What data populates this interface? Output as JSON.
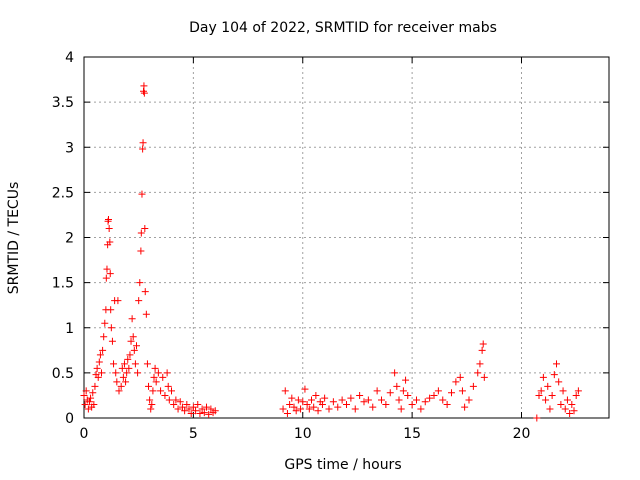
{
  "chart_data": {
    "type": "scatter",
    "title": "Day 104 of 2022, SRMTID for receiver mabs",
    "xlabel": "GPS time / hours",
    "ylabel": "SRMTID / TECUs",
    "xlim": [
      0,
      24
    ],
    "ylim": [
      0,
      4
    ],
    "x_ticks": [
      0,
      5,
      10,
      15,
      20
    ],
    "x_tick_labels": [
      "0",
      "5",
      "10",
      "15",
      "20"
    ],
    "y_ticks": [
      0,
      0.5,
      1,
      1.5,
      2,
      2.5,
      3,
      3.5,
      4
    ],
    "y_tick_labels": [
      "0",
      "0.5",
      "1",
      "1.5",
      "2",
      "2.5",
      "3",
      "3.5",
      "4"
    ],
    "grid": true,
    "marker": "+",
    "series": [
      {
        "name": "SRMTID",
        "color": "#ff0000",
        "points": [
          [
            0.0,
            0.25
          ],
          [
            0.05,
            0.15
          ],
          [
            0.1,
            0.3
          ],
          [
            0.15,
            0.2
          ],
          [
            0.2,
            0.1
          ],
          [
            0.25,
            0.18
          ],
          [
            0.3,
            0.22
          ],
          [
            0.35,
            0.12
          ],
          [
            0.4,
            0.28
          ],
          [
            0.45,
            0.15
          ],
          [
            0.5,
            0.35
          ],
          [
            0.55,
            0.48
          ],
          [
            0.6,
            0.55
          ],
          [
            0.65,
            0.45
          ],
          [
            0.7,
            0.62
          ],
          [
            0.75,
            0.7
          ],
          [
            0.8,
            0.5
          ],
          [
            0.85,
            0.75
          ],
          [
            0.9,
            0.9
          ],
          [
            0.95,
            1.05
          ],
          [
            1.0,
            1.2
          ],
          [
            1.02,
            1.55
          ],
          [
            1.05,
            1.65
          ],
          [
            1.08,
            1.92
          ],
          [
            1.1,
            2.18
          ],
          [
            1.12,
            2.2
          ],
          [
            1.15,
            2.1
          ],
          [
            1.18,
            1.95
          ],
          [
            1.2,
            1.6
          ],
          [
            1.22,
            1.2
          ],
          [
            1.25,
            1.0
          ],
          [
            1.3,
            0.85
          ],
          [
            1.35,
            0.6
          ],
          [
            1.4,
            1.3
          ],
          [
            1.45,
            0.5
          ],
          [
            1.5,
            0.4
          ],
          [
            1.55,
            1.3
          ],
          [
            1.6,
            0.3
          ],
          [
            1.7,
            0.35
          ],
          [
            1.75,
            0.55
          ],
          [
            1.8,
            0.45
          ],
          [
            1.85,
            0.6
          ],
          [
            1.9,
            0.4
          ],
          [
            1.95,
            0.5
          ],
          [
            2.0,
            0.65
          ],
          [
            2.05,
            0.55
          ],
          [
            2.1,
            0.7
          ],
          [
            2.15,
            0.85
          ],
          [
            2.2,
            1.1
          ],
          [
            2.25,
            0.9
          ],
          [
            2.3,
            0.75
          ],
          [
            2.35,
            0.6
          ],
          [
            2.4,
            0.8
          ],
          [
            2.45,
            0.5
          ],
          [
            2.5,
            1.3
          ],
          [
            2.55,
            1.5
          ],
          [
            2.6,
            1.85
          ],
          [
            2.62,
            2.05
          ],
          [
            2.65,
            2.48
          ],
          [
            2.68,
            2.98
          ],
          [
            2.7,
            3.05
          ],
          [
            2.72,
            3.62
          ],
          [
            2.74,
            3.68
          ],
          [
            2.76,
            3.6
          ],
          [
            2.78,
            2.1
          ],
          [
            2.8,
            1.4
          ],
          [
            2.85,
            1.15
          ],
          [
            2.9,
            0.6
          ],
          [
            2.95,
            0.35
          ],
          [
            3.0,
            0.2
          ],
          [
            3.05,
            0.1
          ],
          [
            3.1,
            0.15
          ],
          [
            3.15,
            0.3
          ],
          [
            3.2,
            0.45
          ],
          [
            3.25,
            0.55
          ],
          [
            3.3,
            0.4
          ],
          [
            3.4,
            0.5
          ],
          [
            3.5,
            0.3
          ],
          [
            3.6,
            0.45
          ],
          [
            3.7,
            0.25
          ],
          [
            3.8,
            0.5
          ],
          [
            3.85,
            0.35
          ],
          [
            3.9,
            0.2
          ],
          [
            4.0,
            0.3
          ],
          [
            4.1,
            0.15
          ],
          [
            4.2,
            0.2
          ],
          [
            4.3,
            0.1
          ],
          [
            4.4,
            0.18
          ],
          [
            4.5,
            0.12
          ],
          [
            4.6,
            0.08
          ],
          [
            4.7,
            0.15
          ],
          [
            4.8,
            0.1
          ],
          [
            4.9,
            0.05
          ],
          [
            5.0,
            0.12
          ],
          [
            5.1,
            0.08
          ],
          [
            5.2,
            0.15
          ],
          [
            5.3,
            0.05
          ],
          [
            5.4,
            0.1
          ],
          [
            5.5,
            0.06
          ],
          [
            5.6,
            0.12
          ],
          [
            5.7,
            0.04
          ],
          [
            5.8,
            0.1
          ],
          [
            5.9,
            0.06
          ],
          [
            6.0,
            0.08
          ],
          [
            9.1,
            0.1
          ],
          [
            9.2,
            0.3
          ],
          [
            9.3,
            0.05
          ],
          [
            9.4,
            0.15
          ],
          [
            9.5,
            0.22
          ],
          [
            9.6,
            0.12
          ],
          [
            9.7,
            0.08
          ],
          [
            9.8,
            0.2
          ],
          [
            9.9,
            0.1
          ],
          [
            10.0,
            0.18
          ],
          [
            10.1,
            0.32
          ],
          [
            10.2,
            0.15
          ],
          [
            10.3,
            0.1
          ],
          [
            10.4,
            0.2
          ],
          [
            10.5,
            0.12
          ],
          [
            10.6,
            0.25
          ],
          [
            10.7,
            0.08
          ],
          [
            10.8,
            0.18
          ],
          [
            10.9,
            0.15
          ],
          [
            11.0,
            0.22
          ],
          [
            11.2,
            0.1
          ],
          [
            11.4,
            0.18
          ],
          [
            11.6,
            0.12
          ],
          [
            11.8,
            0.2
          ],
          [
            12.0,
            0.15
          ],
          [
            12.2,
            0.22
          ],
          [
            12.4,
            0.1
          ],
          [
            12.6,
            0.25
          ],
          [
            12.8,
            0.18
          ],
          [
            13.0,
            0.2
          ],
          [
            13.2,
            0.12
          ],
          [
            13.4,
            0.3
          ],
          [
            13.6,
            0.2
          ],
          [
            13.8,
            0.15
          ],
          [
            14.0,
            0.28
          ],
          [
            14.2,
            0.5
          ],
          [
            14.3,
            0.35
          ],
          [
            14.4,
            0.2
          ],
          [
            14.5,
            0.1
          ],
          [
            14.6,
            0.3
          ],
          [
            14.7,
            0.42
          ],
          [
            14.8,
            0.25
          ],
          [
            15.0,
            0.15
          ],
          [
            15.2,
            0.2
          ],
          [
            15.4,
            0.1
          ],
          [
            15.6,
            0.18
          ],
          [
            15.8,
            0.22
          ],
          [
            16.0,
            0.25
          ],
          [
            16.2,
            0.3
          ],
          [
            16.4,
            0.2
          ],
          [
            16.6,
            0.15
          ],
          [
            16.8,
            0.28
          ],
          [
            17.0,
            0.4
          ],
          [
            17.2,
            0.45
          ],
          [
            17.3,
            0.3
          ],
          [
            17.4,
            0.12
          ],
          [
            17.6,
            0.2
          ],
          [
            17.8,
            0.35
          ],
          [
            18.0,
            0.5
          ],
          [
            18.1,
            0.6
          ],
          [
            18.2,
            0.75
          ],
          [
            18.25,
            0.82
          ],
          [
            18.3,
            0.45
          ],
          [
            20.7,
            0.0
          ],
          [
            20.8,
            0.25
          ],
          [
            20.9,
            0.3
          ],
          [
            21.0,
            0.45
          ],
          [
            21.1,
            0.2
          ],
          [
            21.2,
            0.35
          ],
          [
            21.3,
            0.1
          ],
          [
            21.4,
            0.25
          ],
          [
            21.5,
            0.48
          ],
          [
            21.6,
            0.6
          ],
          [
            21.7,
            0.4
          ],
          [
            21.8,
            0.15
          ],
          [
            21.9,
            0.3
          ],
          [
            22.0,
            0.1
          ],
          [
            22.1,
            0.2
          ],
          [
            22.2,
            0.05
          ],
          [
            22.3,
            0.15
          ],
          [
            22.4,
            0.08
          ],
          [
            22.5,
            0.25
          ],
          [
            22.6,
            0.3
          ]
        ]
      }
    ]
  }
}
